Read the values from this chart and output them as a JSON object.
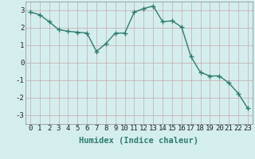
{
  "x": [
    0,
    1,
    2,
    3,
    4,
    5,
    6,
    7,
    8,
    9,
    10,
    11,
    12,
    13,
    14,
    15,
    16,
    17,
    18,
    19,
    20,
    21,
    22,
    23
  ],
  "y": [
    2.9,
    2.75,
    2.35,
    1.9,
    1.8,
    1.75,
    1.7,
    0.65,
    1.1,
    1.7,
    1.7,
    2.9,
    3.1,
    3.25,
    2.35,
    2.4,
    2.05,
    0.35,
    -0.55,
    -0.75,
    -0.75,
    -1.15,
    -1.75,
    -2.6
  ],
  "line_color": "#2e7d6e",
  "marker": "+",
  "markersize": 4,
  "linewidth": 1.0,
  "bg_color": "#d4eeee",
  "grid_color": "#c8a8a8",
  "xlabel": "Humidex (Indice chaleur)",
  "xlabel_fontsize": 7.5,
  "tick_fontsize": 6.5,
  "ylim": [
    -3.5,
    3.5
  ],
  "xlim": [
    -0.5,
    23.5
  ],
  "yticks": [
    -3,
    -2,
    -1,
    0,
    1,
    2,
    3
  ],
  "xticks": [
    0,
    1,
    2,
    3,
    4,
    5,
    6,
    7,
    8,
    9,
    10,
    11,
    12,
    13,
    14,
    15,
    16,
    17,
    18,
    19,
    20,
    21,
    22,
    23
  ],
  "spine_color": "#888888"
}
